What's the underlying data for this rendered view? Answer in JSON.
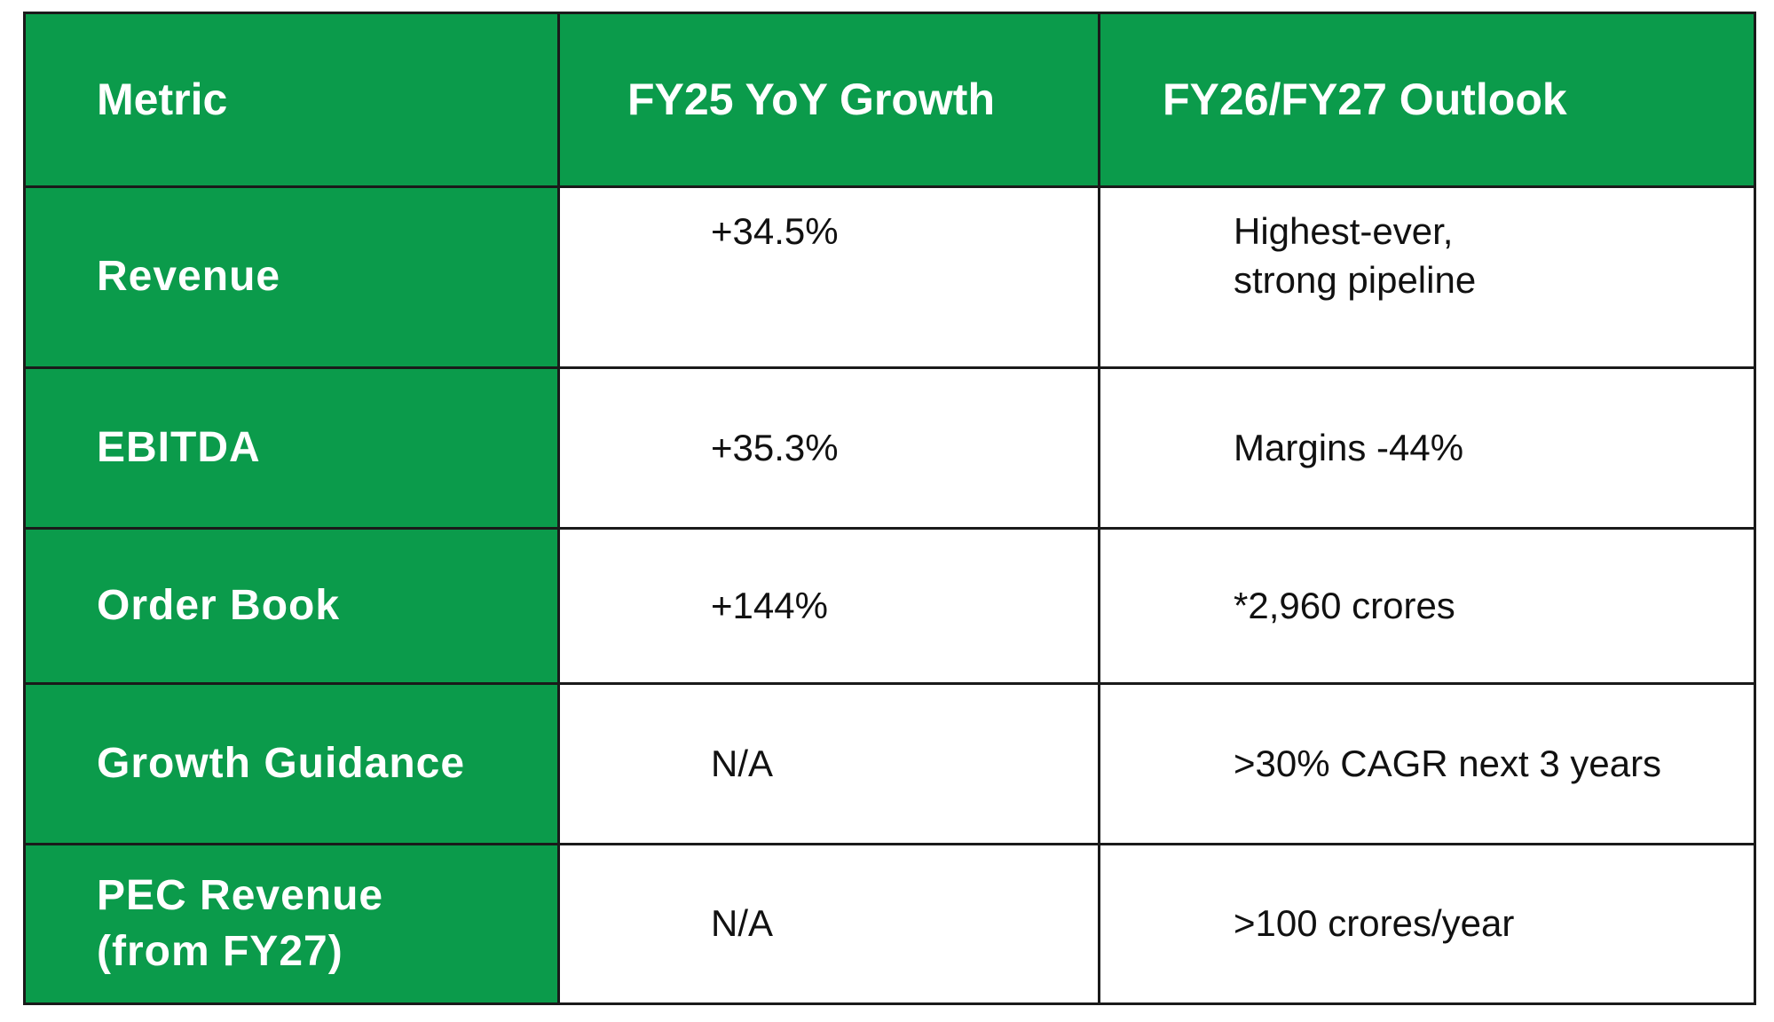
{
  "table": {
    "header": [
      "Metric",
      "FY25 YoY Growth",
      "FY26/FY27 Outlook"
    ],
    "rows": [
      [
        "Revenue",
        "+34.5%",
        "Highest-ever,\nstrong pipeline"
      ],
      [
        "EBITDA",
        "+35.3%",
        "Margins -44%"
      ],
      [
        "Order Book",
        "+144%",
        "*2,960 crores"
      ],
      [
        "Growth Guidance",
        "N/A",
        ">30% CAGR next 3 years"
      ],
      [
        "PEC Revenue\n(from FY27)",
        "N/A",
        ">100 crores/year"
      ]
    ]
  }
}
